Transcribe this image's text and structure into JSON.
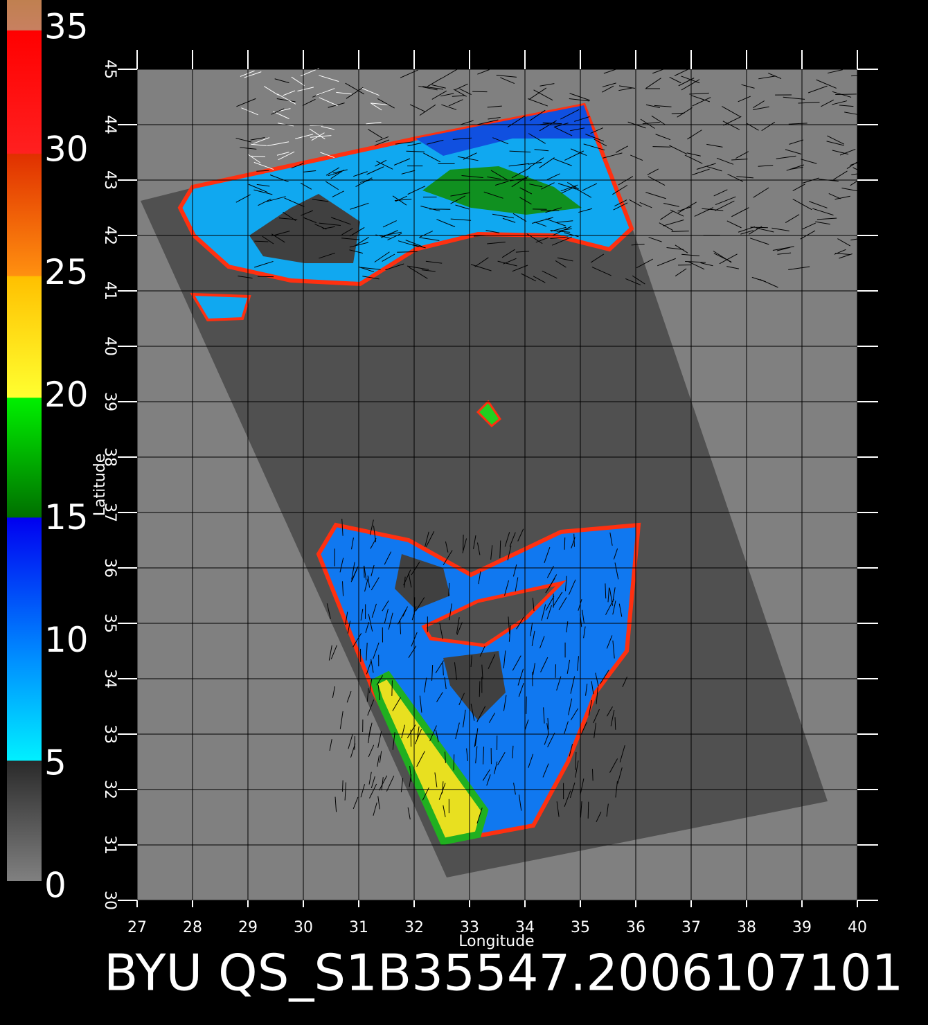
{
  "title": "BYU QS_S1B35547.2006107101",
  "map": {
    "xlabel": "Longitude",
    "ylabel": "Latitude",
    "xlim": [
      27,
      40
    ],
    "ylim": [
      30,
      45
    ],
    "xticks": [
      27,
      28,
      29,
      30,
      31,
      32,
      33,
      34,
      35,
      36,
      37,
      38,
      39,
      40
    ],
    "yticks": [
      30,
      31,
      32,
      33,
      34,
      35,
      36,
      37,
      38,
      39,
      40,
      41,
      42,
      43,
      44,
      45
    ]
  },
  "colorbar": {
    "lim": [
      0,
      35
    ],
    "ticks": [
      0,
      5,
      10,
      15,
      20,
      25,
      30,
      35
    ]
  }
}
